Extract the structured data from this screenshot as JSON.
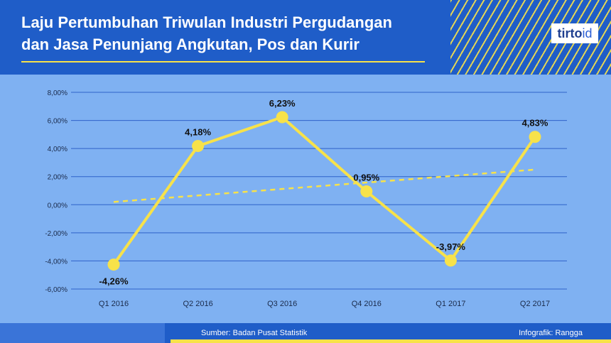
{
  "header": {
    "title_line1": "Laju Pertumbuhan Triwulan Industri Pergudangan",
    "title_line2": "dan Jasa Penunjang Angkutan, Pos dan Kurir",
    "logo_text": "tirto",
    "logo_suffix": "id"
  },
  "footer": {
    "source": "Sumber: Badan Pusat Statistik",
    "credit": "Infografik: Rangga"
  },
  "colors": {
    "background": "#7fb1f2",
    "header": "#1f5dc8",
    "line": "#f7e24a",
    "grid": "#2f62c9"
  },
  "chart_data": {
    "type": "line",
    "title": "Laju Pertumbuhan Triwulan Industri Pergudangan dan Jasa Penunjang Angkutan, Pos dan Kurir",
    "categories": [
      "Q1 2016",
      "Q2 2016",
      "Q3 2016",
      "Q4 2016",
      "Q1 2017",
      "Q2 2017"
    ],
    "values": [
      -4.26,
      4.18,
      6.23,
      0.95,
      -3.97,
      4.83
    ],
    "data_labels": [
      "-4,26%",
      "4,18%",
      "6,23%",
      "0,95%",
      "-3,97%",
      "4,83%"
    ],
    "trendline": {
      "style": "dashed",
      "start": 0.2,
      "end": 2.5
    },
    "y_ticks": [
      8,
      6,
      4,
      2,
      0,
      -2,
      -4,
      -6
    ],
    "y_tick_labels": [
      "8,00%",
      "6,00%",
      "4,00%",
      "2,00%",
      "0,00%",
      "-2,00%",
      "-4,00%",
      "-6,00%"
    ],
    "ylim": [
      -6,
      8
    ],
    "grid": true,
    "legend": "none",
    "xlabel": "",
    "ylabel": ""
  }
}
